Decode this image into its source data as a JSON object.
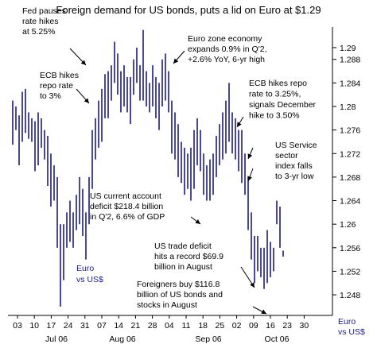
{
  "chart_data": {
    "type": "ohlc",
    "title": "Foreign demand for US bonds, puts a lid on Euro at $1.29",
    "ylim": [
      1.2445,
      1.2935
    ],
    "y_ticks": [
      "1.248",
      "1.252",
      "1.256",
      "1.26",
      "1.264",
      "1.268",
      "1.272",
      "1.276",
      "1.28",
      "1.284",
      "1.288",
      "1.29"
    ],
    "x_day_labels": [
      "03",
      "10",
      "17",
      "24",
      "31",
      "07",
      "14",
      "21",
      "28",
      "04",
      "11",
      "18",
      "25",
      "02",
      "09",
      "16",
      "23",
      "30"
    ],
    "x_month_labels": [
      "Jul 06",
      "Aug 06",
      "Sep 06",
      "Oct 06"
    ],
    "series_label": [
      "Euro",
      "vs US$"
    ],
    "axis_corner_label": [
      "Euro",
      "vs US$"
    ],
    "colors": {
      "bars": "#1a1a8c",
      "text": "#000000",
      "axis": "#000000"
    },
    "bars": [
      [
        1.2735,
        1.281
      ],
      [
        1.276,
        1.28
      ],
      [
        1.27,
        1.2785
      ],
      [
        1.274,
        1.2825
      ],
      [
        1.2755,
        1.283
      ],
      [
        1.2745,
        1.279
      ],
      [
        1.274,
        1.278
      ],
      [
        1.269,
        1.2775
      ],
      [
        1.27,
        1.279
      ],
      [
        1.273,
        1.278
      ],
      [
        1.271,
        1.276
      ],
      [
        1.2665,
        1.275
      ],
      [
        1.263,
        1.272
      ],
      [
        1.264,
        1.27
      ],
      [
        1.256,
        1.268
      ],
      [
        1.246,
        1.26
      ],
      [
        1.2505,
        1.26
      ],
      [
        1.256,
        1.262
      ],
      [
        1.257,
        1.264
      ],
      [
        1.256,
        1.262
      ],
      [
        1.259,
        1.265
      ],
      [
        1.26,
        1.268
      ],
      [
        1.258,
        1.266
      ],
      [
        1.254,
        1.262
      ],
      [
        1.26,
        1.268
      ],
      [
        1.266,
        1.276
      ],
      [
        1.271,
        1.278
      ],
      [
        1.273,
        1.281
      ],
      [
        1.274,
        1.283
      ],
      [
        1.278,
        1.2855
      ],
      [
        1.278,
        1.286
      ],
      [
        1.281,
        1.287
      ],
      [
        1.284,
        1.291
      ],
      [
        1.282,
        1.289
      ],
      [
        1.279,
        1.286
      ],
      [
        1.28,
        1.287
      ],
      [
        1.279,
        1.285
      ],
      [
        1.277,
        1.285
      ],
      [
        1.282,
        1.288
      ],
      [
        1.284,
        1.29
      ],
      [
        1.281,
        1.287
      ],
      [
        1.281,
        1.293
      ],
      [
        1.28,
        1.286
      ],
      [
        1.279,
        1.284
      ],
      [
        1.28,
        1.287
      ],
      [
        1.278,
        1.285
      ],
      [
        1.276,
        1.284
      ],
      [
        1.28,
        1.288
      ],
      [
        1.281,
        1.289
      ],
      [
        1.279,
        1.286
      ],
      [
        1.272,
        1.281
      ],
      [
        1.271,
        1.279
      ],
      [
        1.268,
        1.277
      ],
      [
        1.267,
        1.274
      ],
      [
        1.265,
        1.273
      ],
      [
        1.266,
        1.272
      ],
      [
        1.264,
        1.273
      ],
      [
        1.266,
        1.276
      ],
      [
        1.27,
        1.278
      ],
      [
        1.269,
        1.276
      ],
      [
        1.265,
        1.272
      ],
      [
        1.264,
        1.27
      ],
      [
        1.264,
        1.271
      ],
      [
        1.265,
        1.272
      ],
      [
        1.268,
        1.275
      ],
      [
        1.27,
        1.277
      ],
      [
        1.271,
        1.279
      ],
      [
        1.272,
        1.281
      ],
      [
        1.274,
        1.284
      ],
      [
        1.272,
        1.279
      ],
      [
        1.271,
        1.278
      ],
      [
        1.269,
        1.276
      ],
      [
        1.267,
        1.276
      ],
      [
        1.265,
        1.272
      ],
      [
        1.259,
        1.268
      ],
      [
        1.254,
        1.262
      ],
      [
        1.25,
        1.258
      ],
      [
        1.252,
        1.258
      ],
      [
        1.251,
        1.256
      ],
      [
        1.249,
        1.256
      ],
      [
        1.25,
        1.259
      ],
      [
        1.251,
        1.257
      ],
      [
        1.252,
        1.256
      ],
      [
        1.26,
        1.264
      ],
      [
        1.256,
        1.263
      ],
      [
        1.2545,
        1.2555
      ]
    ],
    "annotations": [
      {
        "id": "fed",
        "lines": [
          "Fed pauses",
          "rate hikes",
          "at 5.25%"
        ]
      },
      {
        "id": "ecb-3",
        "lines": [
          "ECB hikes",
          "repo rate",
          "to 3%"
        ]
      },
      {
        "id": "eurozone",
        "lines": [
          "Euro zone economy",
          "expands 0.9% in Q'2,",
          "+2.6% YoY, 6-yr high"
        ]
      },
      {
        "id": "ecb-325",
        "lines": [
          "ECB hikes repo",
          "rate to 3.25%,",
          "signals December",
          "hike to 3.50%"
        ]
      },
      {
        "id": "service",
        "lines": [
          "US Service",
          "sector",
          "index falls",
          "to 3-yr low"
        ]
      },
      {
        "id": "current-account",
        "lines": [
          "US current account",
          "deficit $218.4 billion",
          "in Q'2, 6.6% of GDP"
        ]
      },
      {
        "id": "trade-deficit",
        "lines": [
          "US trade deficit",
          "hits a record $69.9",
          "billion in August"
        ]
      },
      {
        "id": "foreigners",
        "lines": [
          "Foreigners buy $116.8",
          "billion of US bonds and",
          "stocks in August"
        ]
      }
    ]
  }
}
